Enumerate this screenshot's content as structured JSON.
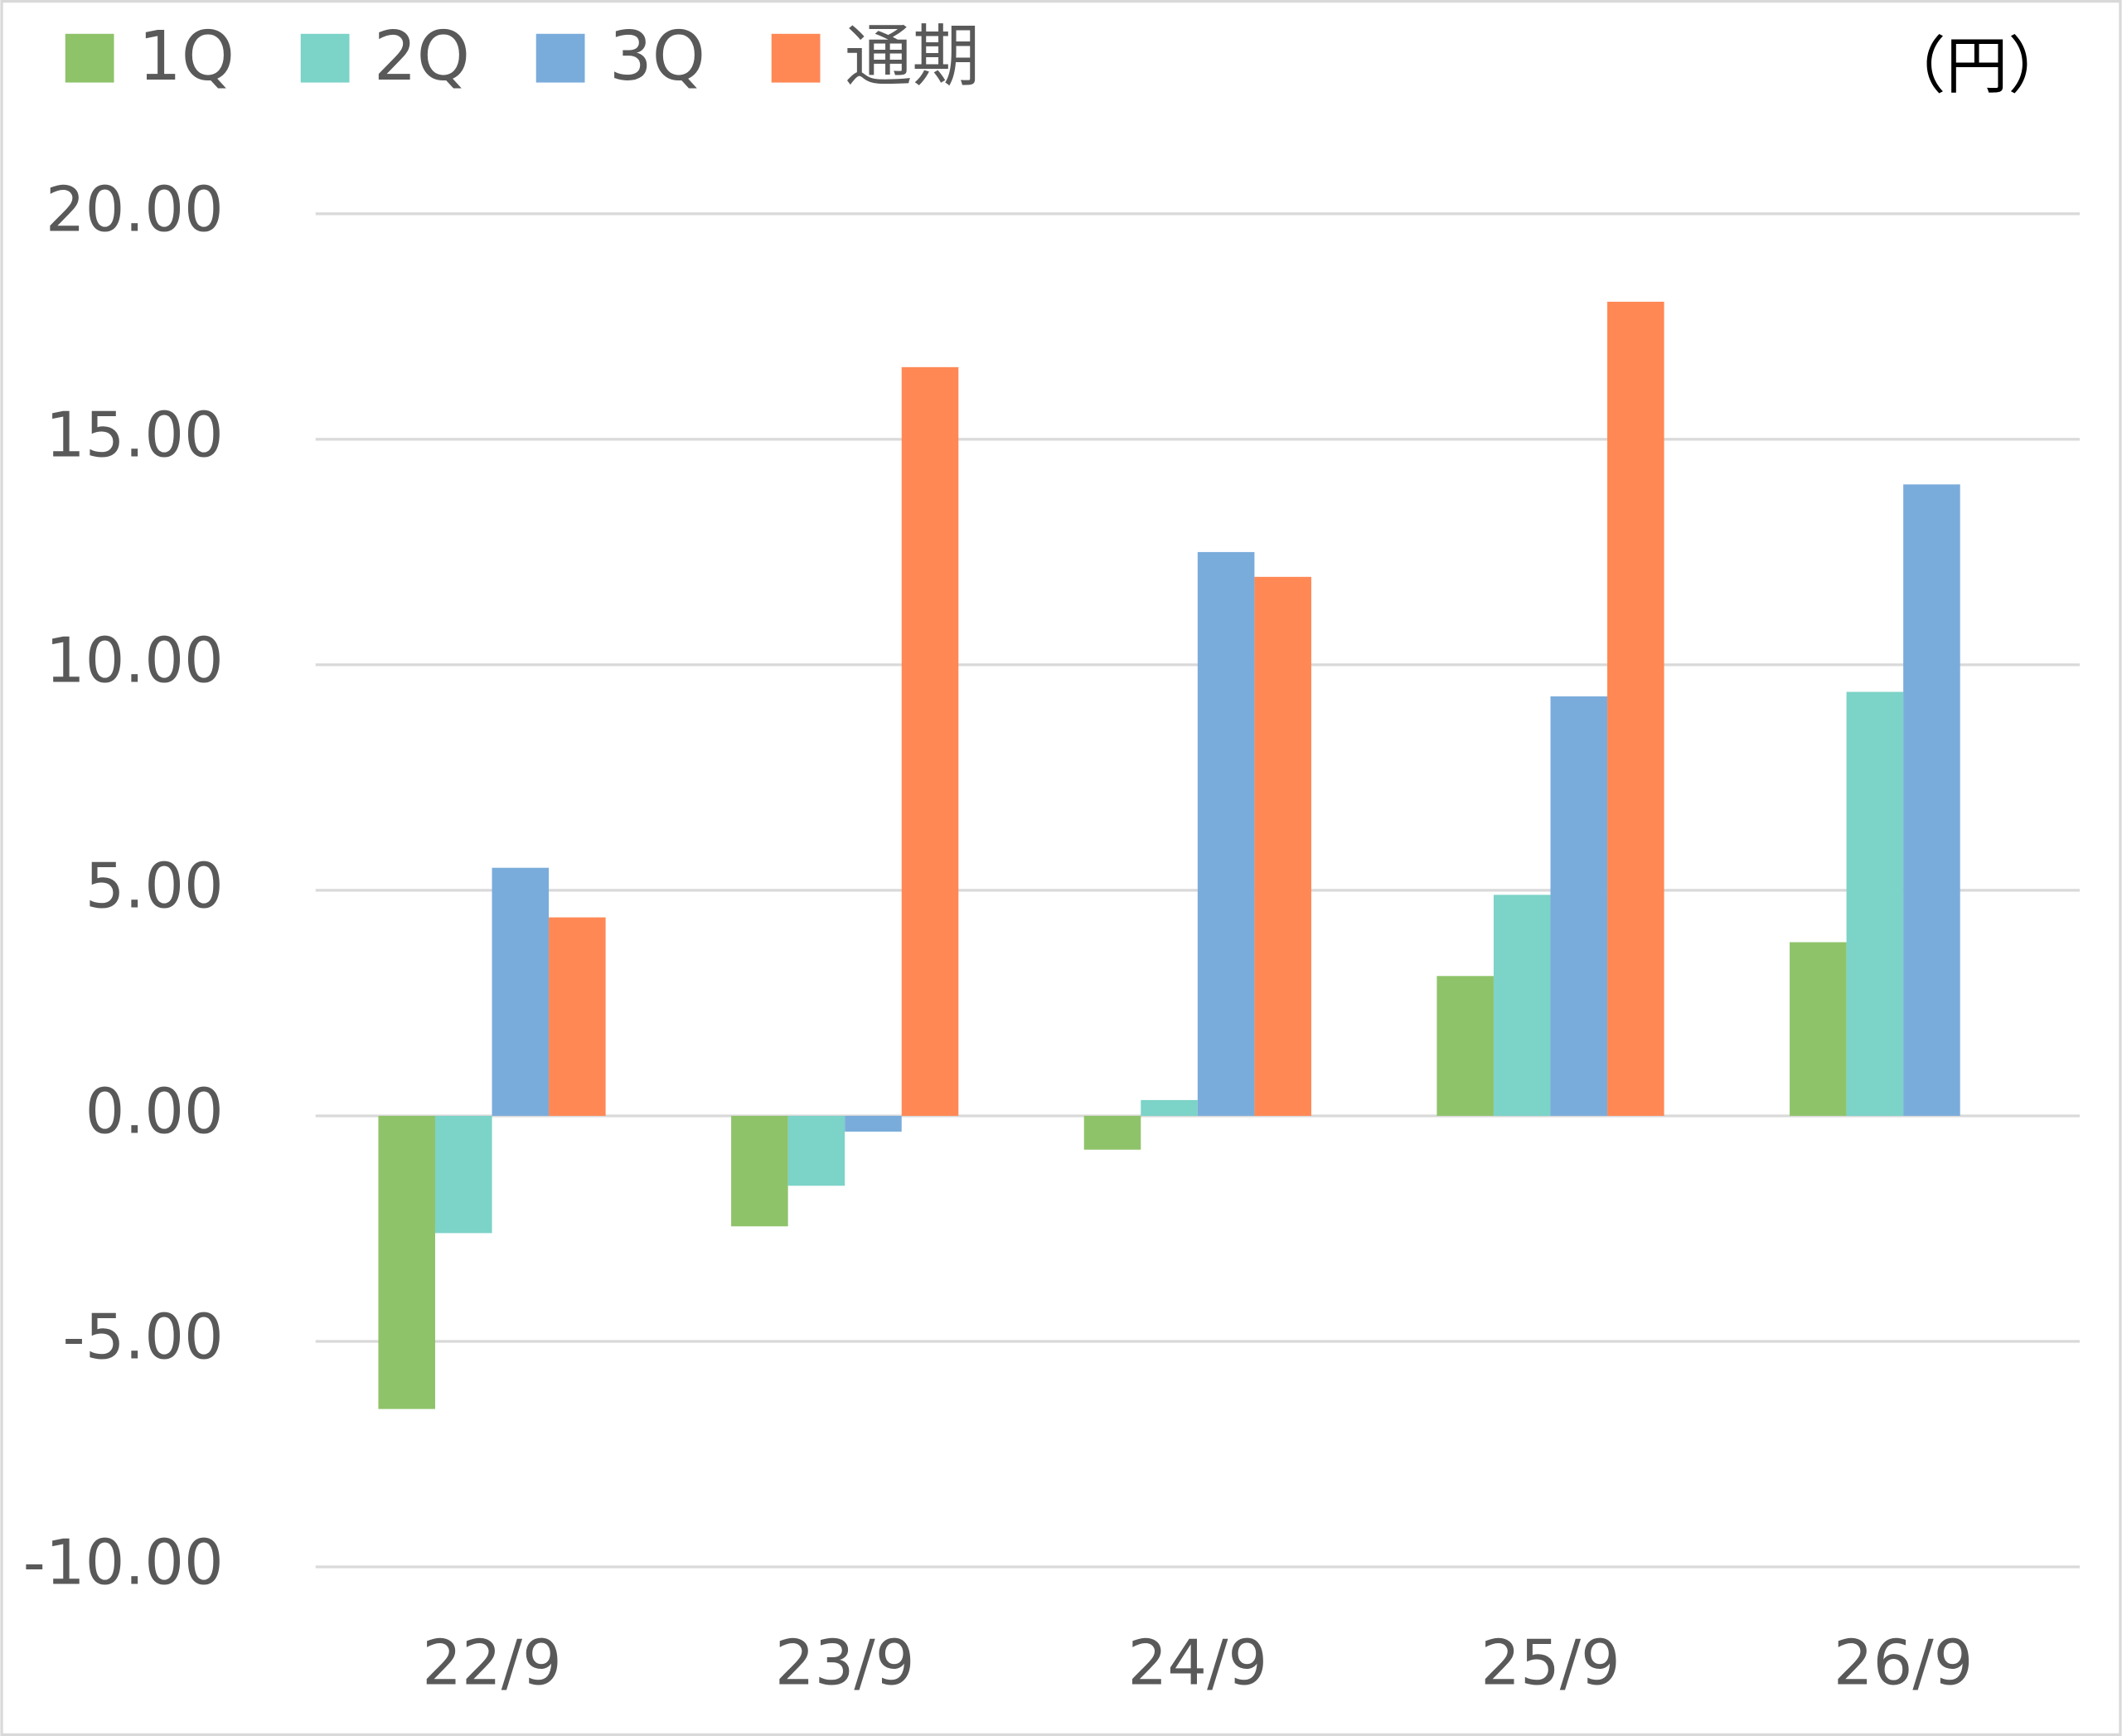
{
  "chart_data": {
    "type": "bar",
    "annotation": "（円）",
    "categories": [
      "22/9",
      "23/9",
      "24/9",
      "25/9",
      "26/9"
    ],
    "series": [
      {
        "name": "1Q",
        "color": "#8fc36a",
        "values": [
          -6.5,
          -2.45,
          -0.75,
          3.1,
          3.85
        ]
      },
      {
        "name": "2Q",
        "color": "#7cd3c8",
        "values": [
          -2.6,
          -1.55,
          0.35,
          4.9,
          9.4
        ]
      },
      {
        "name": "3Q",
        "color": "#7aacdb",
        "values": [
          5.5,
          -0.35,
          12.5,
          9.3,
          14.0
        ]
      },
      {
        "name": "通期",
        "color": "#ff8855",
        "values": [
          4.4,
          16.6,
          11.95,
          18.05,
          null
        ]
      }
    ],
    "ylim": [
      -10,
      20
    ],
    "yticks": [
      {
        "value": -10,
        "label": "-10.00"
      },
      {
        "value": -5,
        "label": "-5.00"
      },
      {
        "value": 0,
        "label": "0.00"
      },
      {
        "value": 5,
        "label": "5.00"
      },
      {
        "value": 10,
        "label": "10.00"
      },
      {
        "value": 15,
        "label": "15.00"
      },
      {
        "value": 20,
        "label": "20.00"
      }
    ],
    "grid": true,
    "legend": "top-left"
  }
}
